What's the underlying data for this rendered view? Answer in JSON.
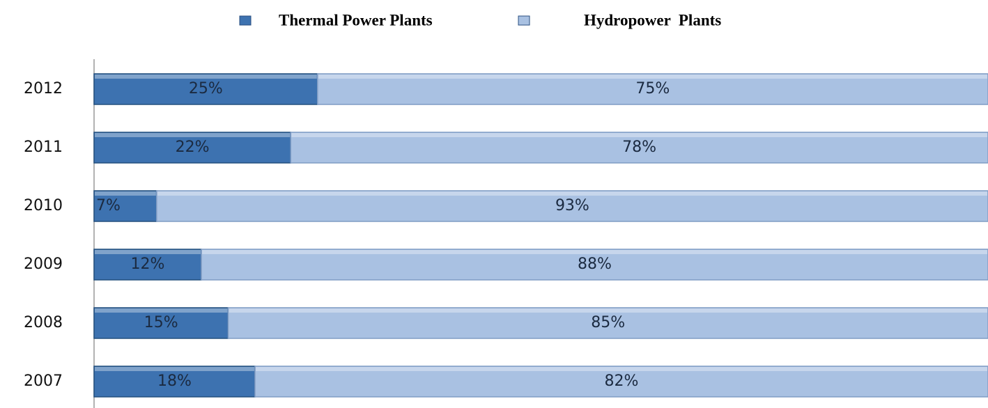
{
  "chart_data": {
    "type": "stacked-bar-horizontal",
    "categories": [
      "2012",
      "2011",
      "2010",
      "2009",
      "2008",
      "2007"
    ],
    "series": [
      {
        "name": "Thermal Power Plants",
        "color": "#3d72b0",
        "values": [
          25,
          22,
          7,
          12,
          15,
          18
        ],
        "value_labels": [
          "25%",
          "22%",
          "7%",
          "12%",
          "15%",
          "18%"
        ]
      },
      {
        "name": "Hydropower  Plants",
        "color": "#a9c1e2",
        "values": [
          75,
          78,
          93,
          88,
          85,
          82
        ],
        "value_labels": [
          "75%",
          "78%",
          "93%",
          "88%",
          "85%",
          "82%"
        ]
      }
    ],
    "xlim": [
      0,
      100
    ],
    "legend": "top"
  }
}
